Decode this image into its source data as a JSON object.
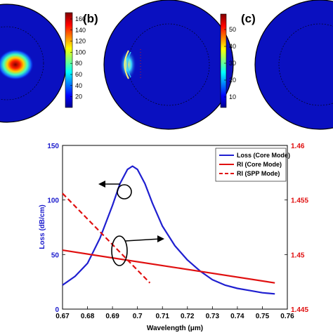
{
  "panels": {
    "b_label": "(b)",
    "c_label": "(c)",
    "colorbar_a_ticks": [
      "160",
      "140",
      "120",
      "100",
      "80",
      "60",
      "40",
      "20"
    ],
    "colorbar_b_ticks": [
      "50",
      "40",
      "30",
      "20",
      "10"
    ]
  },
  "chart_data": {
    "type": "line",
    "xlabel": "Wavelength (μm)",
    "ylabel_left": "Loss (dB/cm)",
    "xlim": [
      0.67,
      0.76
    ],
    "ylim_left": [
      0,
      150
    ],
    "ylim_right": [
      1.445,
      1.46
    ],
    "x_ticks": [
      "0.67",
      "0.68",
      "0.69",
      "0.7",
      "0.71",
      "0.72",
      "0.73",
      "0.74",
      "0.75",
      "0.76"
    ],
    "y_left_ticks": [
      "0",
      "50",
      "100",
      "150"
    ],
    "y_right_ticks": [
      "1.445",
      "1.45",
      "1.455",
      "1.46"
    ],
    "legend_position": "top-right",
    "colors": {
      "loss": "#1f1fd0",
      "ri": "#e01010",
      "left_axis": "#1a1acc",
      "right_axis": "#e01010"
    },
    "series": [
      {
        "name": "Loss (Core Mode)",
        "axis": "left",
        "style": "solid",
        "x": [
          0.67,
          0.675,
          0.68,
          0.685,
          0.69,
          0.693,
          0.696,
          0.698,
          0.7,
          0.703,
          0.706,
          0.71,
          0.715,
          0.72,
          0.725,
          0.73,
          0.735,
          0.74,
          0.745,
          0.75,
          0.755
        ],
        "values": [
          22,
          30,
          42,
          65,
          95,
          115,
          128,
          131,
          128,
          115,
          97,
          76,
          58,
          45,
          35,
          27,
          22,
          19,
          17,
          15,
          14
        ]
      },
      {
        "name": "RI (Core Mode)",
        "axis": "right",
        "style": "solid",
        "x": [
          0.67,
          0.755
        ],
        "values": [
          1.4504,
          1.4474
        ]
      },
      {
        "name": "RI (SPP Mode)",
        "axis": "right",
        "style": "dashed",
        "x": [
          0.67,
          0.705
        ],
        "values": [
          1.4556,
          1.4474
        ]
      }
    ]
  }
}
